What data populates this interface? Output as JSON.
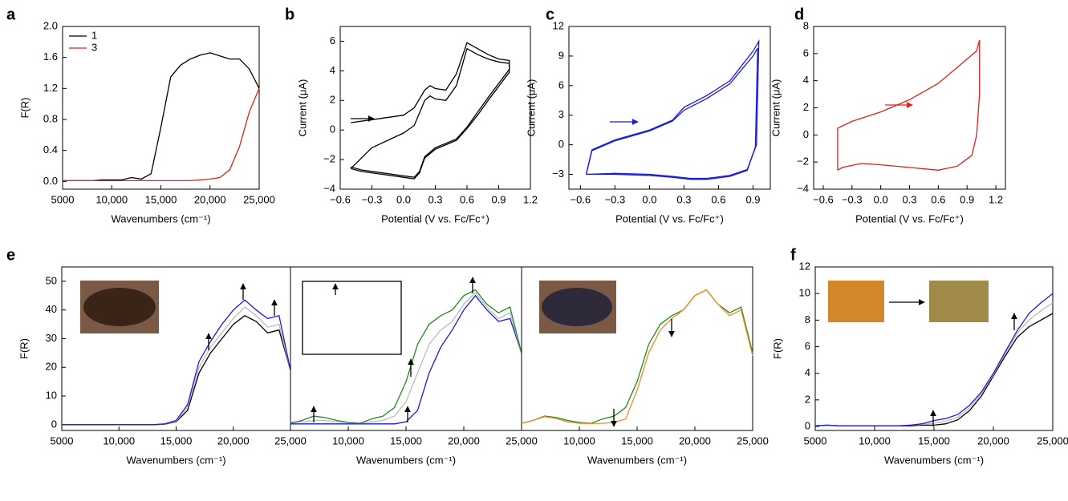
{
  "chart_data": [
    {
      "type": "line",
      "panel": "a",
      "xlabel": "Wavenumbers (cm⁻¹)",
      "ylabel": "F(R)",
      "xlim": [
        5000,
        25000
      ],
      "ylim": [
        -0.1,
        2.0
      ],
      "xticks": [
        5000,
        {
          "value": 10000,
          "label": "10,000"
        },
        {
          "value": 15000,
          "label": "15,000"
        },
        {
          "value": 20000,
          "label": "20,000"
        },
        {
          "value": 25000,
          "label": "25,000"
        }
      ],
      "yticks": [
        {
          "value": 0,
          "label": "0.0"
        },
        0.4,
        0.8,
        1.2,
        1.6,
        {
          "value": 2,
          "label": "2.0"
        }
      ],
      "legend": "upper left",
      "x": [
        5000,
        6000,
        7000,
        8000,
        9000,
        10000,
        11000,
        12000,
        13000,
        14000,
        15000,
        16000,
        17000,
        18000,
        19000,
        20000,
        21000,
        22000,
        23000,
        24000,
        25000
      ],
      "series": [
        {
          "name": "1",
          "color": "#000000",
          "values": [
            0.01,
            0.01,
            0.01,
            0.01,
            0.02,
            0.02,
            0.02,
            0.05,
            0.03,
            0.1,
            0.7,
            1.35,
            1.5,
            1.58,
            1.63,
            1.66,
            1.62,
            1.58,
            1.58,
            1.45,
            1.2
          ]
        },
        {
          "name": "3",
          "color": "#e0201b",
          "values": [
            0.01,
            0.01,
            0.01,
            0.01,
            0.01,
            0.01,
            0.01,
            0.01,
            0.01,
            0.01,
            0.01,
            0.01,
            0.01,
            0.01,
            0.02,
            0.03,
            0.05,
            0.15,
            0.45,
            0.9,
            1.2
          ]
        }
      ]
    },
    {
      "type": "line",
      "panel": "b",
      "xlabel": "Potential (V vs. Fc/Fc⁺)",
      "ylabel": "Current (μA)",
      "xlim": [
        -0.6,
        1.2
      ],
      "ylim": [
        -4,
        7
      ],
      "xticks": [
        {
          "value": -0.6,
          "label": "−0.6"
        },
        {
          "value": -0.3,
          "label": "−0.3"
        },
        {
          "value": 0,
          "label": "0.0"
        },
        0.3,
        0.6,
        0.9,
        1.2
      ],
      "yticks": [
        {
          "value": -4,
          "label": "−4"
        },
        {
          "value": -2,
          "label": "−2"
        },
        0,
        2,
        4,
        6
      ],
      "series": [
        {
          "color": "#000000",
          "x": [
            -0.5,
            -0.3,
            0,
            0.1,
            0.2,
            0.25,
            0.3,
            0.4,
            0.5,
            0.6,
            0.7,
            0.8,
            0.9,
            1.0,
            1.0,
            0.8,
            0.7,
            0.6,
            0.5,
            0.4,
            0.3,
            0.2,
            0.15,
            0.1,
            0,
            -0.2,
            -0.4,
            -0.5
          ],
          "values": [
            0.5,
            0.7,
            1.0,
            1.5,
            2.7,
            3.0,
            2.8,
            2.7,
            3.8,
            5.9,
            5.5,
            5.1,
            4.8,
            4.7,
            4.1,
            2.2,
            1.2,
            0.2,
            -0.6,
            -0.9,
            -1.2,
            -1.8,
            -2.8,
            -3.2,
            -3.1,
            -2.9,
            -2.7,
            -2.5
          ]
        },
        {
          "color": "#000000",
          "x": [
            -0.5,
            -0.3,
            0,
            0.1,
            0.2,
            0.25,
            0.3,
            0.4,
            0.5,
            0.6,
            0.7,
            0.8,
            0.9,
            1.0,
            1.0,
            0.8,
            0.7,
            0.6,
            0.5,
            0.4,
            0.3,
            0.2,
            0.15,
            0.1,
            0,
            -0.2,
            -0.4,
            -0.5
          ],
          "values": [
            -2.6,
            -1.2,
            -0.2,
            0.3,
            2.0,
            2.3,
            2.1,
            2.0,
            3.0,
            5.5,
            5.1,
            4.8,
            4.6,
            4.5,
            3.9,
            2.0,
            1.0,
            0.1,
            -0.7,
            -1.0,
            -1.3,
            -1.9,
            -2.9,
            -3.3,
            -3.2,
            -3.0,
            -2.8,
            -2.6
          ]
        }
      ]
    },
    {
      "type": "line",
      "panel": "c",
      "xlabel": "Potential (V vs. Fc/Fc⁺)",
      "ylabel": "Current (μA)",
      "xlim": [
        -0.7,
        1.05
      ],
      "ylim": [
        -4.5,
        12
      ],
      "xticks": [
        {
          "value": -0.6,
          "label": "−0.6"
        },
        {
          "value": -0.3,
          "label": "−0.3"
        },
        {
          "value": 0,
          "label": "0.0"
        },
        0.3,
        0.6,
        0.9
      ],
      "yticks": [
        {
          "value": -3,
          "label": "−3"
        },
        0,
        3,
        6,
        9,
        12
      ],
      "series": [
        {
          "color": "#1a1adb",
          "x": [
            -0.55,
            -0.5,
            -0.3,
            0,
            0.2,
            0.3,
            0.5,
            0.7,
            0.8,
            0.9,
            0.95,
            0.93,
            0.85,
            0.7,
            0.5,
            0.35,
            0.2,
            0,
            -0.3,
            -0.55
          ],
          "values": [
            -3,
            -0.5,
            0.5,
            1.5,
            2.5,
            3.8,
            5,
            6.5,
            8,
            9.5,
            10.5,
            0,
            -2.5,
            -3.1,
            -3.4,
            -3.4,
            -3.2,
            -3,
            -2.9,
            -3
          ]
        },
        {
          "color": "#1a1adb",
          "x": [
            -0.55,
            -0.5,
            -0.3,
            0,
            0.2,
            0.3,
            0.5,
            0.7,
            0.8,
            0.9,
            0.94,
            0.92,
            0.85,
            0.7,
            0.5,
            0.35,
            0.2,
            0,
            -0.3,
            -0.55
          ],
          "values": [
            -3,
            -0.6,
            0.4,
            1.4,
            2.4,
            3.5,
            4.7,
            6.2,
            7.6,
            9,
            9.8,
            -0.2,
            -2.6,
            -3.2,
            -3.5,
            -3.5,
            -3.3,
            -3.1,
            -3,
            -3
          ]
        }
      ]
    },
    {
      "type": "line",
      "panel": "d",
      "xlabel": "Potential (V vs. Fc/Fc⁺)",
      "ylabel": "Current (μA)",
      "xlim": [
        -0.7,
        1.3
      ],
      "ylim": [
        -4,
        8
      ],
      "xticks": [
        {
          "value": -0.6,
          "label": "−0.6"
        },
        {
          "value": -0.3,
          "label": "−0.3"
        },
        {
          "value": 0,
          "label": "0.0"
        },
        0.3,
        0.6,
        0.9,
        1.2
      ],
      "yticks": [
        {
          "value": -4,
          "label": "−4"
        },
        {
          "value": -2,
          "label": "−2"
        },
        0,
        2,
        4,
        6,
        8
      ],
      "series": [
        {
          "color": "#e0201b",
          "x": [
            -0.45,
            -0.45,
            -0.3,
            0,
            0.3,
            0.6,
            0.8,
            0.9,
            1.0,
            1.03,
            1.03,
            1.0,
            0.95,
            0.8,
            0.6,
            0.3,
            0,
            -0.2,
            -0.4,
            -0.45
          ],
          "values": [
            -2.6,
            0.5,
            1,
            1.7,
            2.6,
            3.8,
            5,
            5.6,
            6.2,
            7,
            3,
            0,
            -1.5,
            -2.3,
            -2.6,
            -2.4,
            -2.2,
            -2.1,
            -2.4,
            -2.6
          ]
        }
      ]
    },
    {
      "type": "line",
      "panel": "e",
      "xlabel": "Wavenumbers (cm⁻¹)",
      "ylabel": "F(R)",
      "xlim": [
        5000,
        25000
      ],
      "ylim": [
        -2,
        55
      ],
      "xticks": [
        5000,
        {
          "value": 10000,
          "label": "10,000"
        },
        {
          "value": 15000,
          "label": "15,000"
        },
        {
          "value": 20000,
          "label": "20,000"
        },
        {
          "value": 25000,
          "label": "25,000"
        }
      ],
      "yticks": [
        0,
        10,
        20,
        30,
        40,
        50
      ],
      "x": [
        5000,
        6000,
        7000,
        8000,
        9000,
        10000,
        11000,
        12000,
        13000,
        14000,
        15000,
        16000,
        17000,
        18000,
        19000,
        20000,
        21000,
        22000,
        23000,
        24000,
        25000
      ],
      "series": [
        {
          "color": "#000000",
          "values": [
            0,
            0,
            0,
            0,
            0,
            0,
            0,
            0,
            0,
            0.2,
            1,
            5,
            18,
            25,
            30,
            35,
            38,
            36,
            32,
            33,
            19
          ]
        },
        {
          "color": "#bbbbbb",
          "values": [
            0,
            0,
            0,
            0,
            0,
            0,
            0,
            0,
            0,
            0.25,
            1.2,
            6,
            20,
            27,
            32,
            37,
            41,
            38,
            34,
            35,
            19
          ]
        },
        {
          "color": "#1a1adb",
          "values": [
            0,
            0,
            0,
            0,
            0,
            0,
            0,
            0,
            0,
            0.3,
            1.5,
            7,
            22,
            29,
            35,
            40,
            43.5,
            40,
            37,
            38,
            19
          ]
        }
      ]
    },
    {
      "type": "line",
      "xlabel": "Wavenumbers (cm⁻¹)",
      "xlim": [
        5000,
        25000
      ],
      "ylim": [
        -2,
        55
      ],
      "xticks": [
        {
          "value": 10000,
          "label": "10,000"
        },
        {
          "value": 15000,
          "label": "15,000"
        },
        {
          "value": 20000,
          "label": "20,000"
        },
        {
          "value": 25000,
          "label": "25,000"
        }
      ],
      "x": [
        5000,
        6000,
        7000,
        8000,
        9000,
        10000,
        11000,
        12000,
        13000,
        14000,
        15000,
        16000,
        17000,
        18000,
        19000,
        20000,
        21000,
        22000,
        23000,
        24000,
        25000
      ],
      "series": [
        {
          "color": "#1a1adb",
          "values": [
            0.3,
            0.3,
            0.3,
            0.3,
            0.3,
            0.3,
            0.3,
            0.3,
            0.3,
            0.3,
            1,
            5,
            18,
            27,
            33,
            40,
            45,
            40,
            36,
            37,
            25
          ]
        },
        {
          "color": "#bbbbbb",
          "values": [
            1,
            1,
            1.5,
            1.5,
            1,
            0.8,
            0.6,
            1,
            1.5,
            3,
            8,
            18,
            28,
            33,
            36,
            42,
            46,
            41,
            37,
            39,
            25
          ]
        },
        {
          "color": "#1f8a1f",
          "values": [
            0.5,
            1.5,
            3,
            2.5,
            1.5,
            0.8,
            0.5,
            2,
            3,
            6,
            15,
            28,
            35,
            38,
            40,
            45,
            47,
            42,
            39,
            41,
            25
          ]
        }
      ]
    },
    {
      "type": "line",
      "xlabel": "Wavenumbers (cm⁻¹)",
      "xlim": [
        5000,
        25000
      ],
      "ylim": [
        -2,
        55
      ],
      "xticks": [
        {
          "value": 10000,
          "label": "10,000"
        },
        {
          "value": 15000,
          "label": "15,000"
        },
        {
          "value": 20000,
          "label": "20,000"
        },
        {
          "value": 25000,
          "label": "25,000"
        }
      ],
      "x": [
        5000,
        6000,
        7000,
        8000,
        9000,
        10000,
        11000,
        12000,
        13000,
        14000,
        15000,
        16000,
        17000,
        18000,
        19000,
        20000,
        21000,
        22000,
        23000,
        24000,
        25000
      ],
      "series": [
        {
          "color": "#1f8a1f",
          "values": [
            0.5,
            1.5,
            3,
            2.5,
            1.5,
            0.8,
            0.5,
            2,
            3,
            6,
            15,
            28,
            35,
            38,
            40,
            45,
            47,
            42,
            39,
            41,
            25
          ]
        },
        {
          "color": "#f28c1f",
          "values": [
            0.5,
            1.5,
            2.8,
            2.2,
            1,
            0.5,
            0.4,
            0.5,
            0.8,
            2,
            12,
            25,
            33,
            37,
            40,
            45,
            47,
            42,
            38,
            40,
            24
          ]
        }
      ]
    },
    {
      "type": "line",
      "panel": "f",
      "xlabel": "Wavenumbers (cm⁻¹)",
      "ylabel": "F(R)",
      "xlim": [
        5000,
        25000
      ],
      "ylim": [
        -0.3,
        12
      ],
      "xticks": [
        5000,
        {
          "value": 10000,
          "label": "10,000"
        },
        {
          "value": 15000,
          "label": "15,000"
        },
        {
          "value": 20000,
          "label": "20,000"
        },
        {
          "value": 25000,
          "label": "25,000"
        }
      ],
      "yticks": [
        0,
        2,
        4,
        6,
        8,
        10,
        12
      ],
      "x": [
        5000,
        6000,
        7000,
        8000,
        9000,
        10000,
        11000,
        12000,
        13000,
        14000,
        15000,
        16000,
        17000,
        18000,
        19000,
        20000,
        21000,
        22000,
        23000,
        24000,
        25000
      ],
      "series": [
        {
          "color": "#000000",
          "values": [
            0.05,
            0.1,
            0.05,
            0.05,
            0.05,
            0.05,
            0.05,
            0.05,
            0.05,
            0.1,
            0.1,
            0.2,
            0.5,
            1.2,
            2.3,
            3.8,
            5.3,
            6.7,
            7.5,
            8,
            8.5
          ]
        },
        {
          "color": "#bbbbbb",
          "values": [
            0.05,
            0.1,
            0.05,
            0.05,
            0.05,
            0.05,
            0.05,
            0.05,
            0.1,
            0.15,
            0.25,
            0.4,
            0.7,
            1.4,
            2.5,
            3.9,
            5.5,
            7,
            8,
            8.7,
            9.3
          ]
        },
        {
          "color": "#1a1adb",
          "values": [
            0.05,
            0.1,
            0.05,
            0.05,
            0.05,
            0.05,
            0.05,
            0.05,
            0.1,
            0.2,
            0.45,
            0.6,
            0.9,
            1.6,
            2.6,
            4,
            5.6,
            7.2,
            8.5,
            9.3,
            10
          ]
        }
      ]
    }
  ]
}
